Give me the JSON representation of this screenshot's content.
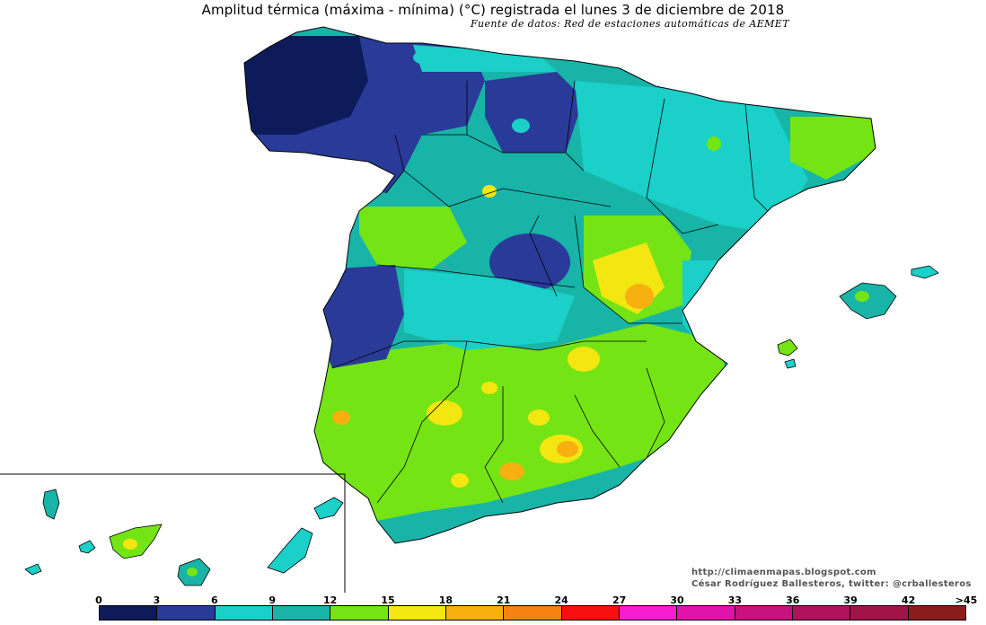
{
  "title": "Amplitud térmica (máxima - mínima) (°C) registrada el lunes 3 de diciembre de 2018",
  "subtitle": "Fuente de datos: Red de estaciones automáticas de AEMET",
  "credits": {
    "website": "http://climaenmapas.blogspot.com",
    "author": "César Rodríguez Ballesteros, twitter: @crballesteros"
  },
  "legend": {
    "tick_labels": [
      "0",
      "3",
      "6",
      "9",
      "12",
      "15",
      "18",
      "21",
      "24",
      "27",
      "30",
      "33",
      "36",
      "39",
      "42",
      ">45"
    ],
    "colors": [
      "#0e1b5a",
      "#2a3a99",
      "#1ad0c8",
      "#18b4a8",
      "#74e414",
      "#f4e610",
      "#f8b010",
      "#f48214",
      "#f81010",
      "#f81cd0",
      "#e014a8",
      "#c8127e",
      "#b0125c",
      "#a01448",
      "#8c1c1c"
    ]
  },
  "regions_colors": {
    "deep_blue": "#0e1b5a",
    "blue": "#2a3a99",
    "cyan": "#1ad0c8",
    "teal": "#18b4a8",
    "green": "#74e414",
    "yellow": "#f4e610",
    "orange": "#f8b010",
    "dark_orange": "#f48214"
  }
}
